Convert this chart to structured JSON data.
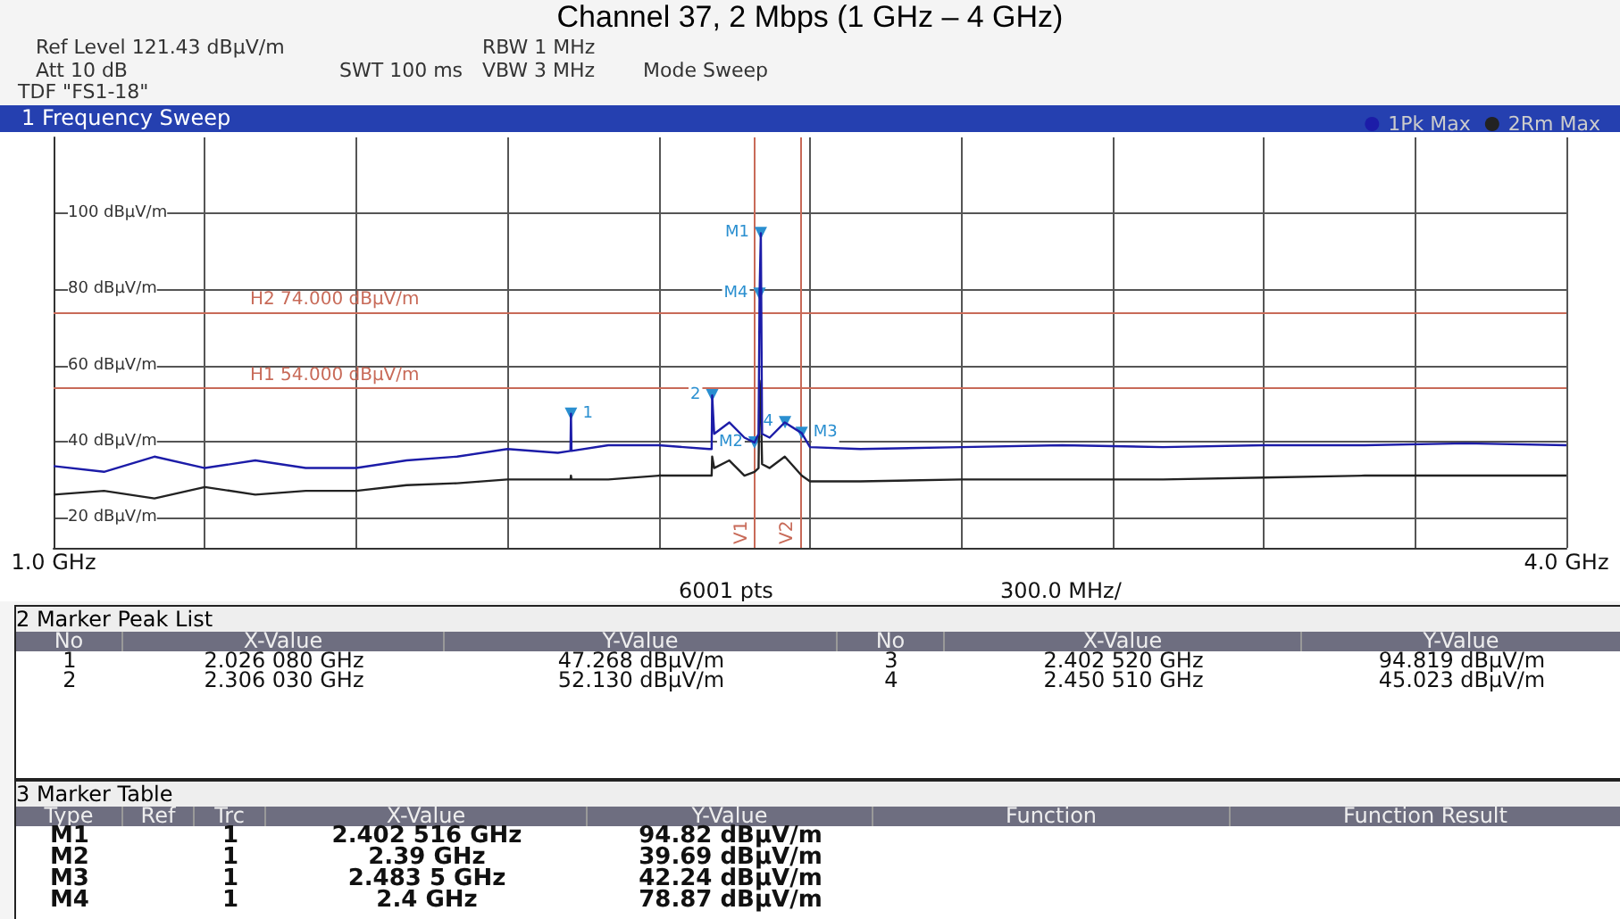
{
  "chart_data": {
    "type": "line",
    "title": "Channel 37, 2 Mbps (1 GHz – 4 GHz)",
    "x": [
      1.0,
      1.1,
      1.2,
      1.3,
      1.4,
      1.5,
      1.6,
      1.7,
      1.8,
      1.9,
      2.0,
      2.025,
      2.026,
      2.027,
      2.1,
      2.2,
      2.3,
      2.305,
      2.306,
      2.31,
      2.34,
      2.37,
      2.39,
      2.398,
      2.4,
      2.4025,
      2.405,
      2.42,
      2.45,
      2.4835,
      2.5,
      2.6,
      2.8,
      3.0,
      3.2,
      3.4,
      3.6,
      3.8,
      4.0
    ],
    "series": [
      {
        "name": "1Pk Max",
        "color": "#1c1ca8",
        "values": [
          33.5,
          32,
          36,
          33,
          35,
          33,
          33,
          35,
          36,
          38,
          37,
          37.5,
          47.3,
          37.5,
          39,
          39,
          38,
          38,
          52.1,
          42,
          45,
          41,
          39.7,
          42,
          78.9,
          94.8,
          42,
          41,
          45,
          42.2,
          38.5,
          38,
          38.5,
          39,
          38.5,
          39,
          39,
          39.5,
          39
        ]
      },
      {
        "name": "2Rm Max",
        "color": "#222222",
        "values": [
          26,
          27,
          25,
          28,
          26,
          27,
          27,
          28.5,
          29,
          30,
          30,
          30,
          31,
          30,
          30,
          31,
          31,
          31,
          36,
          33,
          35,
          31,
          32,
          33,
          56,
          50,
          34,
          33,
          36,
          31,
          29.5,
          29.5,
          30,
          30,
          30,
          30.5,
          31,
          31,
          31
        ]
      }
    ],
    "xlim": [
      1.0,
      4.0
    ],
    "xticks": [
      {
        "value": 1.0,
        "label": "1.0 GHz"
      },
      {
        "value": 1.3,
        "label": null
      },
      {
        "value": 1.6,
        "label": null
      },
      {
        "value": 1.9,
        "label": null
      },
      {
        "value": 2.2,
        "label": null
      },
      {
        "value": 2.5,
        "label": null
      },
      {
        "value": 2.8,
        "label": null
      },
      {
        "value": 3.1,
        "label": null
      },
      {
        "value": 3.4,
        "label": null
      },
      {
        "value": 3.7,
        "label": null
      },
      {
        "value": 4.0,
        "label": "4.0 GHz"
      }
    ],
    "ylim": [
      12,
      120
    ],
    "yticks": [
      {
        "value": 20,
        "label": "20 dBµV/m"
      },
      {
        "value": 40,
        "label": "40 dBµV/m"
      },
      {
        "value": 60,
        "label": "60 dBµV/m"
      },
      {
        "value": 80,
        "label": "80 dBµV/m"
      },
      {
        "value": 100,
        "label": "100 dBµV/m"
      }
    ],
    "grid": true,
    "legend": "top right",
    "marker": "none",
    "line_style": "solid",
    "ref_lines": [
      {
        "axis": "y",
        "value": 54,
        "label": "H1 54.000 dBµV/m",
        "color": "#c86a58"
      },
      {
        "axis": "y",
        "value": 74,
        "label": "H2 74.000 dBµV/m",
        "color": "#c86a58"
      },
      {
        "axis": "x",
        "value": 2.39,
        "label": "V1",
        "color": "#c86a58"
      },
      {
        "axis": "x",
        "value": 2.4835,
        "label": "V2",
        "color": "#c86a58"
      }
    ],
    "annotations": [
      "Ref Level 121.43 dBµV/m",
      "RBW 1 MHz",
      "Att 10 dB",
      "SWT 100 ms",
      "VBW 3 MHz",
      "Mode Sweep",
      "TDF \"FS1-18\"",
      "1 Frequency Sweep",
      "6001 pts",
      "300.0 MHz/",
      "2 Marker Peak List",
      "No\tX-Value\tY-Value\tNo\tX-Value\tY-Value",
      "1\t2.026 080 GHz\t47.268 dBµV/m\t3\t2.402 520 GHz\t94.819 dBµV/m",
      "2\t2.306 030 GHz\t52.130 dBµV/m\t4\t2.450 510 GHz\t45.023 dBµV/m",
      "3 Marker Table",
      "Type\tRef\tTrc\tX-Value\tY-Value\tFunction\tFunction Result",
      "M1\t\t1\t2.402 516 GHz\t94.82 dBµV/m\t\t",
      "M2\t\t1\t2.39 GHz\t39.69 dBµV/m\t\t",
      "M3\t\t1\t2.483 5 GHz\t42.24 dBµV/m\t\t",
      "M4\t\t1\t2.4 GHz\t78.87 dBµV/m\t\t",
      {
        "text": "M1",
        "x": 2.402516,
        "y": 94.82
      },
      {
        "text": "M2",
        "x": 2.39,
        "y": 39.69
      },
      {
        "text": "M3",
        "x": 2.4835,
        "y": 42.24
      },
      {
        "text": "M4",
        "x": 2.4,
        "y": 78.87
      },
      {
        "text": "1",
        "x": 2.02608,
        "y": 47.268
      },
      {
        "text": "2",
        "x": 2.30603,
        "y": 52.13
      },
      {
        "text": "4",
        "x": 2.45051,
        "y": 45.023
      }
    ]
  }
}
